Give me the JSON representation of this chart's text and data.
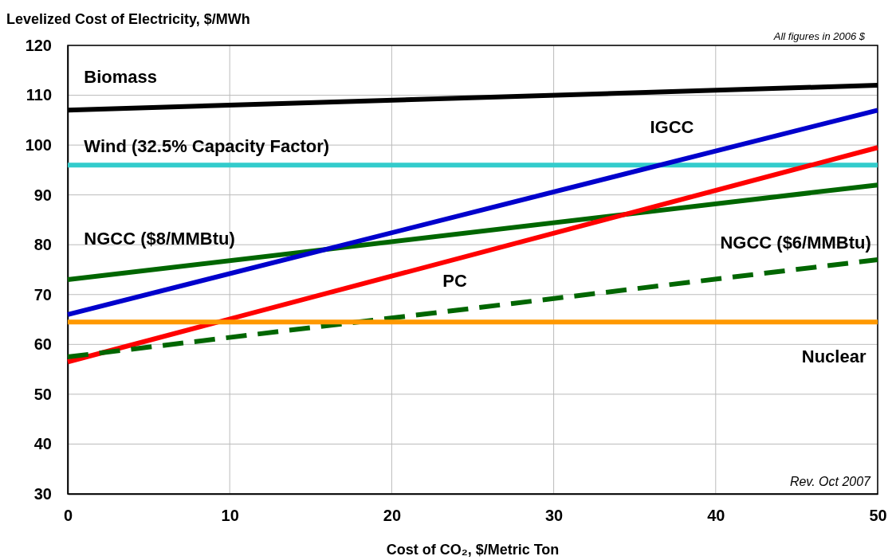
{
  "chart_data": {
    "type": "line",
    "ylabel": "Levelized Cost of Electricity, $/MWh",
    "xlabel": "Cost of CO₂, $/Metric Ton",
    "x": [
      0,
      50
    ],
    "xlim": [
      0,
      50
    ],
    "xticks": [
      0,
      10,
      20,
      30,
      40,
      50
    ],
    "ylim": [
      30,
      120
    ],
    "yticks": [
      30,
      40,
      50,
      60,
      70,
      80,
      90,
      100,
      110,
      120
    ],
    "grid": true,
    "legend": false,
    "marker": "none",
    "series": [
      {
        "name": "Biomass",
        "color": "#000000",
        "values": [
          107,
          112
        ]
      },
      {
        "name": "Wind (32.5% Capacity Factor)",
        "color": "#33cccc",
        "values": [
          96,
          96
        ]
      },
      {
        "name": "NGCC ($8/MMBtu)",
        "color": "#006600",
        "values": [
          73,
          92
        ]
      },
      {
        "name": "IGCC",
        "color": "#0000cc",
        "values": [
          66,
          107
        ]
      },
      {
        "name": "PC",
        "color": "#ff0000",
        "values": [
          56.5,
          99.5
        ]
      },
      {
        "name": "NGCC ($6/MMBtu)",
        "color": "#006600",
        "values": [
          57.5,
          77
        ],
        "line_style": "dashed"
      },
      {
        "name": "Nuclear",
        "color": "#ff9900",
        "values": [
          64.5,
          64.5
        ]
      }
    ],
    "annotations": [
      "All figures in 2006 $",
      "Rev. Oct 2007"
    ]
  }
}
